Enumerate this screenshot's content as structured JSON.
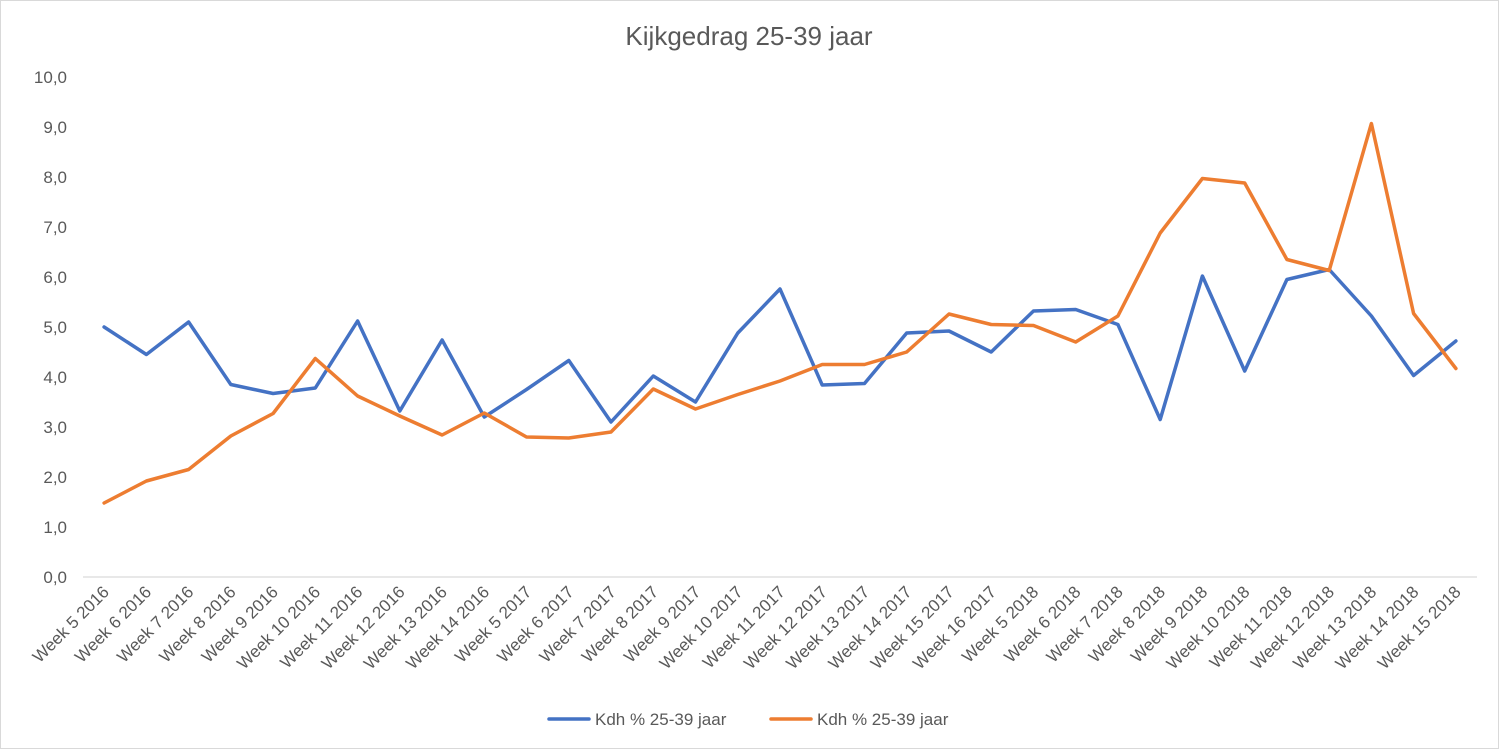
{
  "chart_data": {
    "type": "line",
    "title": "Kijkgedrag 25-39 jaar",
    "categories": [
      "Week 5 2016",
      "Week 6 2016",
      "Week 7 2016",
      "Week 8 2016",
      "Week 9 2016",
      "Week 10 2016",
      "Week 11 2016",
      "Week 12 2016",
      "Week 13 2016",
      "Week 14 2016",
      "Week 5 2017",
      "Week 6 2017",
      "Week 7 2017",
      "Week 8 2017",
      "Week 9 2017",
      "Week 10 2017",
      "Week 11 2017",
      "Week 12 2017",
      "Week 13 2017",
      "Week 14 2017",
      "Week 15 2017",
      "Week 16 2017",
      "Week 5 2018",
      "Week 6 2018",
      "Week 7 2018",
      "Week 8 2018",
      "Week 9 2018",
      "Week 10 2018",
      "Week 11 2018",
      "Week 12 2018",
      "Week 13 2018",
      "Week 14 2018",
      "Week 15 2018"
    ],
    "series": [
      {
        "name": "Kdh % 25-39 jaar",
        "color": "#4472c4",
        "values": [
          5.0,
          4.45,
          5.1,
          3.85,
          3.67,
          3.78,
          5.12,
          3.32,
          4.74,
          3.2,
          3.75,
          4.33,
          3.1,
          4.02,
          3.5,
          4.88,
          5.76,
          3.84,
          3.87,
          4.88,
          4.92,
          4.5,
          5.32,
          5.35,
          5.05,
          3.15,
          6.02,
          4.12,
          5.95,
          6.15,
          5.22,
          4.03,
          4.72
        ]
      },
      {
        "name": "Kdh % 25-39 jaar",
        "color": "#ed7d31",
        "values": [
          1.48,
          1.92,
          2.15,
          2.82,
          3.27,
          4.37,
          3.62,
          3.22,
          2.84,
          3.28,
          2.8,
          2.78,
          2.9,
          3.76,
          3.36,
          3.65,
          3.92,
          4.25,
          4.25,
          4.5,
          5.26,
          5.05,
          5.03,
          4.7,
          5.22,
          6.88,
          7.97,
          7.88,
          6.35,
          6.13,
          9.07,
          5.27,
          4.17
        ]
      }
    ],
    "ylim": [
      0,
      10
    ],
    "yticks": [
      "0,0",
      "1,0",
      "2,0",
      "3,0",
      "4,0",
      "5,0",
      "6,0",
      "7,0",
      "8,0",
      "9,0",
      "10,0"
    ],
    "xlabel": "",
    "ylabel": "",
    "grid": false,
    "legend_position": "bottom"
  }
}
